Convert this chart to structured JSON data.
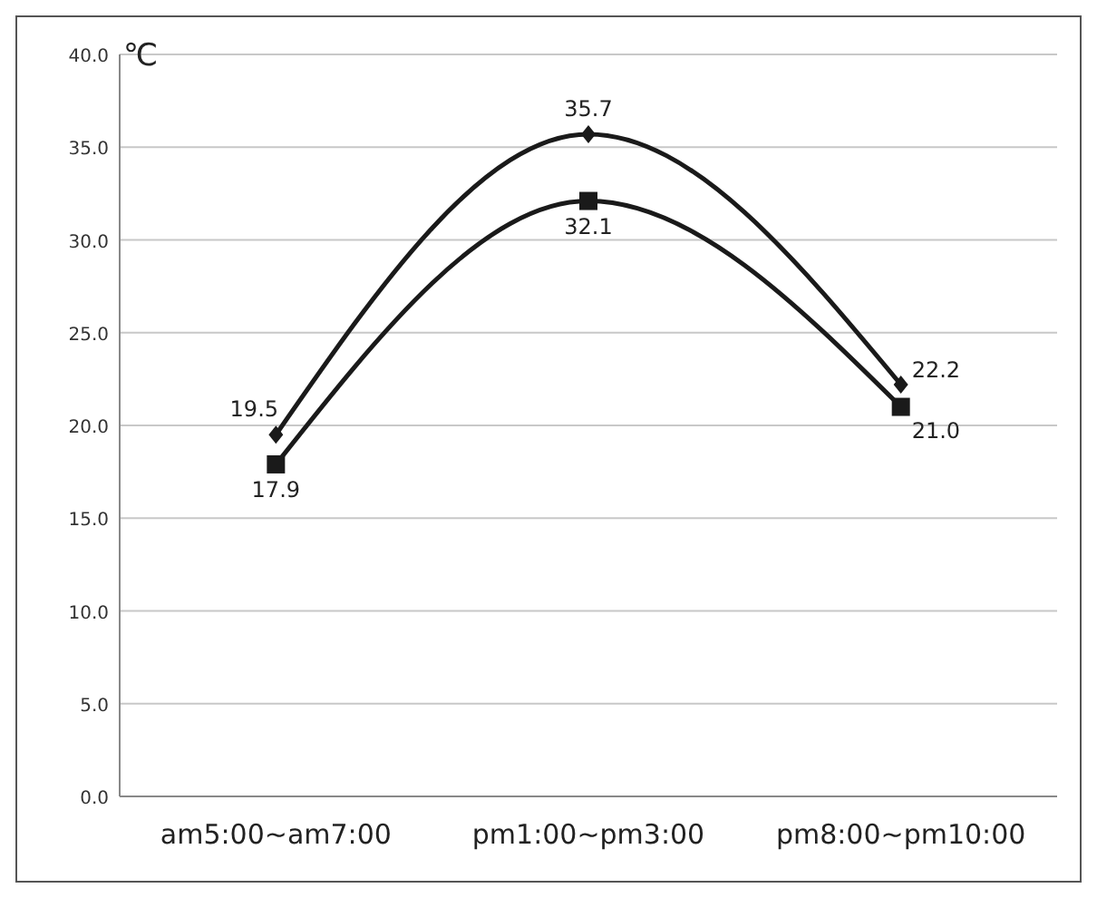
{
  "chart_data": {
    "type": "line",
    "ylabel": "℃",
    "categories": [
      "am5:00~am7:00",
      "pm1:00~pm3:00",
      "pm8:00~pm10:00"
    ],
    "series": [
      {
        "color": "#1a1a1a",
        "values": [
          19.5,
          35.7,
          22.2
        ],
        "marker": "diamond",
        "value_labels": [
          "19.5",
          "35.7",
          "22.2"
        ]
      },
      {
        "color": "#1a1a1a",
        "values": [
          17.9,
          32.1,
          21.0
        ],
        "marker": "square",
        "value_labels": [
          "17.9",
          "32.1",
          "21.0"
        ]
      }
    ],
    "ylim": [
      0,
      40
    ],
    "yticks": [
      {
        "value": 0,
        "label": "0.0"
      },
      {
        "value": 5,
        "label": "5.0"
      },
      {
        "value": 10,
        "label": "10.0"
      },
      {
        "value": 15,
        "label": "15.0"
      },
      {
        "value": 20,
        "label": "20.0"
      },
      {
        "value": 25,
        "label": "25.0"
      },
      {
        "value": 30,
        "label": "30.0"
      },
      {
        "value": 35,
        "label": "35.0"
      },
      {
        "value": 40,
        "label": "40.0"
      }
    ],
    "grid": "y",
    "line_style": "solid"
  }
}
